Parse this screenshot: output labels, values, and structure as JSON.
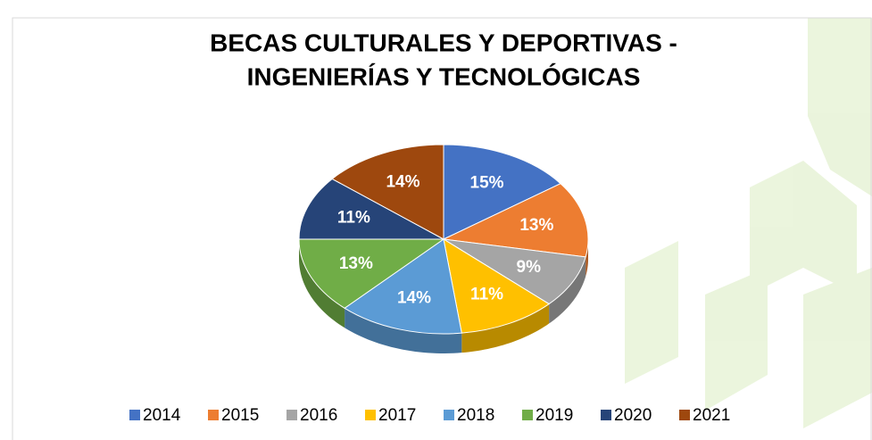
{
  "chart_data": {
    "type": "pie",
    "title": [
      "BECAS CULTURALES Y DEPORTIVAS -",
      "INGENIERÍAS Y TECNOLÓGICAS"
    ],
    "categories": [
      "2014",
      "2015",
      "2016",
      "2017",
      "2018",
      "2019",
      "2020",
      "2021"
    ],
    "values": [
      15,
      13,
      9,
      11,
      14,
      13,
      11,
      14
    ],
    "value_labels": [
      "15%",
      "13%",
      "9%",
      "11%",
      "14%",
      "13%",
      "11%",
      "14%"
    ],
    "colors": [
      "#4472c4",
      "#ed7d31",
      "#a5a5a5",
      "#ffc000",
      "#5b9bd5",
      "#70ad47",
      "#264478",
      "#9e480e"
    ],
    "legend": "bottom"
  }
}
